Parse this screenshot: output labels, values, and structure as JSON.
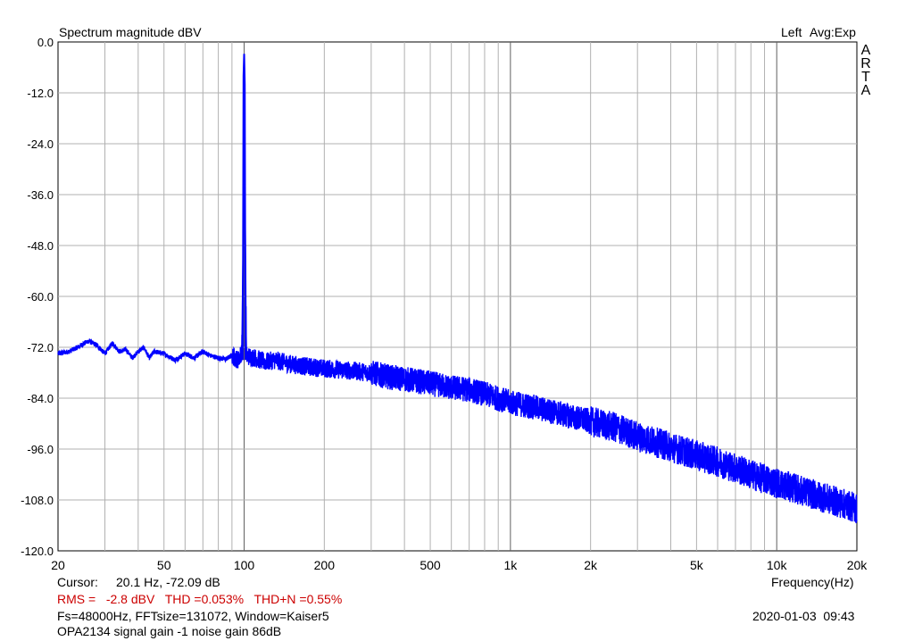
{
  "header": {
    "title": "Spectrum magnitude dBV",
    "channel": "Left",
    "avg": "Avg:Exp"
  },
  "brand": [
    "A",
    "R",
    "T",
    "A"
  ],
  "footer": {
    "cursor_label": "Cursor:",
    "cursor_value": "20.1 Hz, -72.09 dB",
    "rms": "RMS =   -2.8 dBV   THD =0.053%   THD+N =0.55%",
    "fft": "Fs=48000Hz, FFTsize=131072, Window=Kaiser5",
    "datetime": "2020-01-03  09:43",
    "note": "OPA2134 signal gain -1 noise gain 86dB"
  },
  "colors": {
    "trace": "#0000ff",
    "grid": "#b0b0b0",
    "grid_major": "#606060",
    "rms_text": "#cc0000"
  },
  "chart_data": {
    "type": "line",
    "xlabel": "Frequency(Hz)",
    "ylabel": "",
    "x_scale": "log",
    "xlim": [
      20,
      20000
    ],
    "ylim": [
      -120,
      0
    ],
    "x_ticks": [
      {
        "value": 20,
        "label": "20"
      },
      {
        "value": 50,
        "label": "50"
      },
      {
        "value": 100,
        "label": "100"
      },
      {
        "value": 200,
        "label": "200"
      },
      {
        "value": 500,
        "label": "500"
      },
      {
        "value": 1000,
        "label": "1k"
      },
      {
        "value": 2000,
        "label": "2k"
      },
      {
        "value": 5000,
        "label": "5k"
      },
      {
        "value": 10000,
        "label": "10k"
      },
      {
        "value": 20000,
        "label": "20k"
      }
    ],
    "y_ticks": [
      {
        "value": 0,
        "label": "0.0"
      },
      {
        "value": -12,
        "label": "-12.0"
      },
      {
        "value": -24,
        "label": "-24.0"
      },
      {
        "value": -36,
        "label": "-36.0"
      },
      {
        "value": -48,
        "label": "-48.0"
      },
      {
        "value": -60,
        "label": "-60.0"
      },
      {
        "value": -72,
        "label": "-72.0"
      },
      {
        "value": -84,
        "label": "-84.0"
      },
      {
        "value": -96,
        "label": "-96.0"
      },
      {
        "value": -108,
        "label": "-108.0"
      },
      {
        "value": -120,
        "label": "-120.0"
      }
    ],
    "grid": true,
    "series": [
      {
        "points": [
          [
            20,
            -73.5
          ],
          [
            22,
            -73.0
          ],
          [
            24,
            -71.8
          ],
          [
            26,
            -70.5
          ],
          [
            28,
            -71.5
          ],
          [
            30,
            -73.5
          ],
          [
            32,
            -71.0
          ],
          [
            34,
            -73.0
          ],
          [
            36,
            -72.5
          ],
          [
            38,
            -74.5
          ],
          [
            40,
            -73.0
          ],
          [
            42,
            -72.0
          ],
          [
            44,
            -74.5
          ],
          [
            46,
            -73.0
          ],
          [
            50,
            -73.5
          ],
          [
            55,
            -75.0
          ],
          [
            60,
            -73.5
          ],
          [
            65,
            -74.5
          ],
          [
            70,
            -73.0
          ],
          [
            75,
            -74.0
          ],
          [
            80,
            -74.5
          ],
          [
            85,
            -74.8
          ],
          [
            90,
            -74.0
          ],
          [
            95,
            -75.0
          ],
          [
            98,
            -73.0
          ],
          [
            99.5,
            -40.0
          ],
          [
            100,
            -2.8
          ],
          [
            100.5,
            -30.0
          ],
          [
            102,
            -74.0
          ],
          [
            110,
            -74.5
          ],
          [
            120,
            -75.5
          ],
          [
            130,
            -75.0
          ],
          [
            150,
            -76.0
          ],
          [
            170,
            -76.5
          ],
          [
            200,
            -77.0
          ],
          [
            250,
            -77.5
          ],
          [
            300,
            -78.0
          ],
          [
            350,
            -79.0
          ],
          [
            400,
            -79.5
          ],
          [
            500,
            -80.5
          ],
          [
            600,
            -81.5
          ],
          [
            700,
            -82.0
          ],
          [
            800,
            -83.0
          ],
          [
            1000,
            -85.0
          ],
          [
            1200,
            -86.0
          ],
          [
            1500,
            -87.5
          ],
          [
            2000,
            -89.5
          ],
          [
            2500,
            -91.0
          ],
          [
            3000,
            -93.0
          ],
          [
            4000,
            -95.5
          ],
          [
            5000,
            -97.5
          ],
          [
            6000,
            -99.0
          ],
          [
            7000,
            -100.5
          ],
          [
            8000,
            -102.0
          ],
          [
            10000,
            -104.0
          ],
          [
            12000,
            -105.5
          ],
          [
            15000,
            -107.5
          ],
          [
            18000,
            -109.0
          ],
          [
            20000,
            -110.0
          ]
        ]
      }
    ]
  }
}
